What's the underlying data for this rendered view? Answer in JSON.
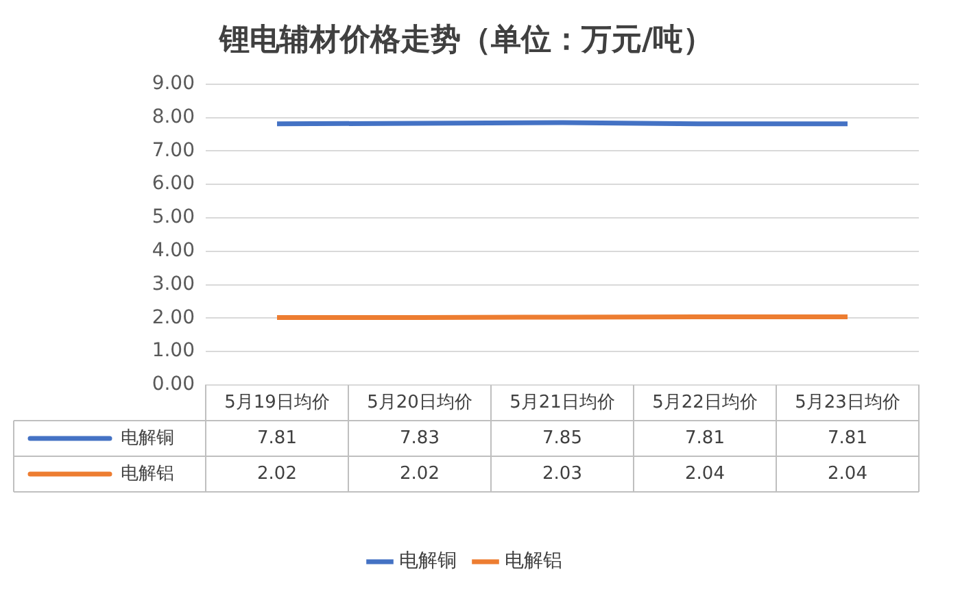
{
  "chart_data": {
    "type": "line",
    "title": "锂电辅材价格走势（单位：万元/吨）",
    "categories": [
      "5月19日均价",
      "5月20日均价",
      "5月21日均价",
      "5月22日均价",
      "5月23日均价"
    ],
    "series": [
      {
        "name": "电解铜",
        "color": "#4472c4",
        "values": [
          7.81,
          7.83,
          7.85,
          7.81,
          7.81
        ]
      },
      {
        "name": "电解铝",
        "color": "#ed7d31",
        "values": [
          2.02,
          2.02,
          2.03,
          2.04,
          2.04
        ]
      }
    ],
    "ylim": [
      0,
      9
    ],
    "yticks": [
      {
        "value": 0,
        "label": "0.00"
      },
      {
        "value": 1,
        "label": "1.00"
      },
      {
        "value": 2,
        "label": "2.00"
      },
      {
        "value": 3,
        "label": "3.00"
      },
      {
        "value": 4,
        "label": "4.00"
      },
      {
        "value": 5,
        "label": "5.00"
      },
      {
        "value": 6,
        "label": "6.00"
      },
      {
        "value": 7,
        "label": "7.00"
      },
      {
        "value": 8,
        "label": "8.00"
      },
      {
        "value": 9,
        "label": "9.00"
      }
    ],
    "grid": "y",
    "legend": "bottom",
    "data_labels": true,
    "marker": "none",
    "line_style": "solid"
  }
}
